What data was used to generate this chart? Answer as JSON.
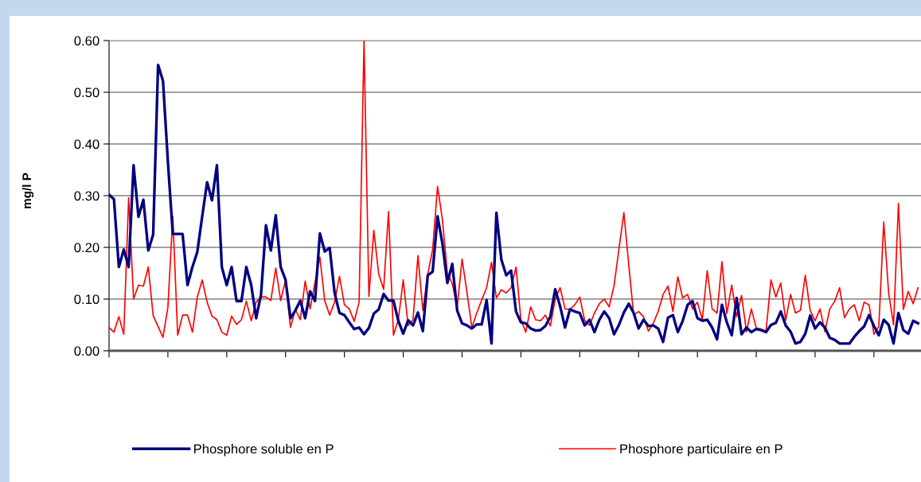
{
  "chart_data": {
    "type": "line",
    "ylabel": "mg/l P",
    "categories": [
      null,
      null,
      null,
      null,
      null,
      null,
      null,
      null,
      null,
      null,
      null,
      null,
      null,
      null,
      null,
      null,
      null,
      null,
      null,
      null,
      null,
      null,
      null,
      null,
      null,
      null,
      null,
      null,
      null,
      null,
      null,
      null,
      null,
      null,
      null,
      null,
      null,
      null,
      null,
      null,
      null,
      null,
      null,
      null,
      null,
      null,
      null,
      null,
      null,
      null,
      null,
      null,
      null,
      null,
      null,
      null,
      null,
      null,
      null,
      null,
      null,
      null,
      null,
      null,
      null,
      null,
      null,
      null,
      null,
      null,
      null,
      null,
      null,
      null,
      null,
      null,
      null,
      null,
      null,
      null,
      null,
      null,
      null,
      null,
      null,
      null,
      null,
      null,
      null,
      null,
      null,
      null,
      null,
      null,
      null,
      null,
      null,
      null,
      null,
      null,
      null,
      null,
      null,
      null,
      null,
      null,
      null,
      null,
      null,
      null,
      null,
      null,
      null,
      null,
      null,
      null,
      null,
      null,
      null,
      null,
      null,
      null,
      null,
      null,
      null,
      null,
      null,
      null,
      null,
      null,
      null,
      null,
      null,
      null,
      null,
      null,
      null,
      null,
      null,
      null,
      null,
      null,
      null,
      null,
      null,
      null,
      null,
      null,
      null,
      null,
      null,
      null,
      null,
      null,
      null,
      null,
      null,
      null,
      null,
      null,
      null,
      null,
      null,
      null,
      null,
      null
    ],
    "series": [
      {
        "name": "Phosphore soluble en P",
        "color": "#000080",
        "values": [
          0.302,
          0.293,
          0.162,
          0.196,
          0.162,
          0.359,
          0.259,
          0.292,
          0.194,
          0.225,
          0.553,
          0.522,
          0.366,
          0.226,
          0.226,
          0.226,
          0.127,
          0.162,
          0.191,
          0.26,
          0.326,
          0.291,
          0.359,
          0.162,
          0.127,
          0.162,
          0.096,
          0.096,
          0.162,
          0.127,
          0.063,
          0.109,
          0.243,
          0.194,
          0.262,
          0.162,
          0.137,
          0.063,
          0.078,
          0.097,
          0.063,
          0.115,
          0.096,
          0.227,
          0.192,
          0.199,
          0.112,
          0.073,
          0.069,
          0.055,
          0.042,
          0.045,
          0.032,
          0.044,
          0.072,
          0.08,
          0.11,
          0.097,
          0.097,
          0.058,
          0.033,
          0.059,
          0.049,
          0.074,
          0.038,
          0.146,
          0.153,
          0.26,
          0.207,
          0.131,
          0.168,
          0.078,
          0.053,
          0.049,
          0.043,
          0.051,
          0.051,
          0.098,
          0.014,
          0.267,
          0.177,
          0.146,
          0.155,
          0.076,
          0.055,
          0.053,
          0.043,
          0.039,
          0.04,
          0.048,
          0.066,
          0.119,
          0.086,
          0.045,
          0.08,
          0.076,
          0.073,
          0.049,
          0.06,
          0.036,
          0.06,
          0.076,
          0.063,
          0.032,
          0.05,
          0.074,
          0.091,
          0.073,
          0.043,
          0.06,
          0.048,
          0.049,
          0.043,
          0.017,
          0.064,
          0.069,
          0.036,
          0.058,
          0.089,
          0.096,
          0.063,
          0.058,
          0.06,
          0.045,
          0.022,
          0.089,
          0.055,
          0.03,
          0.102,
          0.032,
          0.045,
          0.036,
          0.042,
          0.04,
          0.036,
          0.05,
          0.054,
          0.076,
          0.049,
          0.037,
          0.014,
          0.017,
          0.033,
          0.068,
          0.043,
          0.055,
          0.045,
          0.025,
          0.021,
          0.014,
          0.014,
          0.014,
          0.027,
          0.038,
          0.047,
          0.069,
          0.048,
          0.03,
          0.06,
          0.05,
          0.014,
          0.073,
          0.04,
          0.033,
          0.058,
          0.053
        ]
      },
      {
        "name": "Phosphore particulaire en P",
        "color": "#ff0000",
        "values": [
          0.045,
          0.036,
          0.066,
          0.032,
          0.296,
          0.1,
          0.127,
          0.125,
          0.162,
          0.068,
          0.047,
          0.026,
          0.084,
          0.26,
          0.03,
          0.069,
          0.069,
          0.036,
          0.104,
          0.137,
          0.094,
          0.067,
          0.06,
          0.036,
          0.03,
          0.067,
          0.051,
          0.06,
          0.096,
          0.058,
          0.094,
          0.104,
          0.104,
          0.097,
          0.16,
          0.097,
          0.137,
          0.045,
          0.08,
          0.06,
          0.135,
          0.081,
          0.132,
          0.181,
          0.096,
          0.069,
          0.094,
          0.144,
          0.089,
          0.081,
          0.057,
          0.094,
          0.6,
          0.105,
          0.233,
          0.148,
          0.119,
          0.269,
          0.03,
          0.06,
          0.137,
          0.049,
          0.06,
          0.184,
          0.078,
          0.148,
          0.196,
          0.318,
          0.253,
          0.15,
          0.13,
          0.084,
          0.177,
          0.113,
          0.045,
          0.073,
          0.098,
          0.122,
          0.171,
          0.102,
          0.118,
          0.112,
          0.122,
          0.162,
          0.06,
          0.036,
          0.085,
          0.06,
          0.058,
          0.069,
          0.048,
          0.1,
          0.122,
          0.081,
          0.08,
          0.089,
          0.104,
          0.059,
          0.049,
          0.073,
          0.091,
          0.1,
          0.085,
          0.126,
          0.197,
          0.267,
          0.166,
          0.069,
          0.076,
          0.066,
          0.038,
          0.053,
          0.076,
          0.109,
          0.125,
          0.076,
          0.143,
          0.102,
          0.109,
          0.081,
          0.094,
          0.06,
          0.155,
          0.081,
          0.073,
          0.172,
          0.072,
          0.127,
          0.066,
          0.107,
          0.037,
          0.081,
          0.044,
          0.042,
          0.038,
          0.137,
          0.104,
          0.131,
          0.059,
          0.109,
          0.073,
          0.078,
          0.146,
          0.078,
          0.058,
          0.081,
          0.037,
          0.081,
          0.096,
          0.122,
          0.064,
          0.081,
          0.089,
          0.058,
          0.094,
          0.089,
          0.032,
          0.047,
          0.249,
          0.112,
          0.05,
          0.285,
          0.08,
          0.115,
          0.091,
          0.122
        ]
      }
    ],
    "ylim": [
      0,
      0.6
    ],
    "yticks": [
      {
        "value": 0,
        "label": "0.00"
      },
      {
        "value": 0.1,
        "label": "0.10"
      },
      {
        "value": 0.2,
        "label": "0.20"
      },
      {
        "value": 0.3,
        "label": "0.30"
      },
      {
        "value": 0.4,
        "label": "0.40"
      },
      {
        "value": 0.5,
        "label": "0.50"
      },
      {
        "value": 0.6,
        "label": "0.60"
      }
    ],
    "grid": "y",
    "legend": "bottom",
    "tick_labels": "y"
  }
}
